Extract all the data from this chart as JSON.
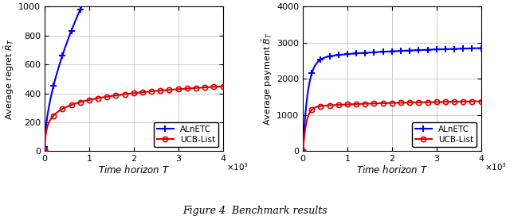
{
  "title": "Figure 4  Benchmark results",
  "left": {
    "ylabel": "Average regret $\\bar{R}_T$",
    "xlabel": "Time horizon $T$",
    "xlim": [
      0,
      4000
    ],
    "ylim": [
      0,
      1000
    ],
    "yticks": [
      0,
      200,
      400,
      600,
      800,
      1000
    ],
    "xticks": [
      0,
      1000,
      2000,
      3000,
      4000
    ]
  },
  "right": {
    "ylabel": "Average payment $\\bar{B}_T$",
    "xlabel": "Time horizon $T$",
    "xlim": [
      0,
      4000
    ],
    "ylim": [
      0,
      4000
    ],
    "yticks": [
      0,
      1000,
      2000,
      3000,
      4000
    ],
    "xticks": [
      0,
      1000,
      2000,
      3000,
      4000
    ]
  },
  "blue_color": "#0000ee",
  "red_color": "#dd0000",
  "legend_labels": [
    "ALnETC",
    "UCB-List"
  ]
}
